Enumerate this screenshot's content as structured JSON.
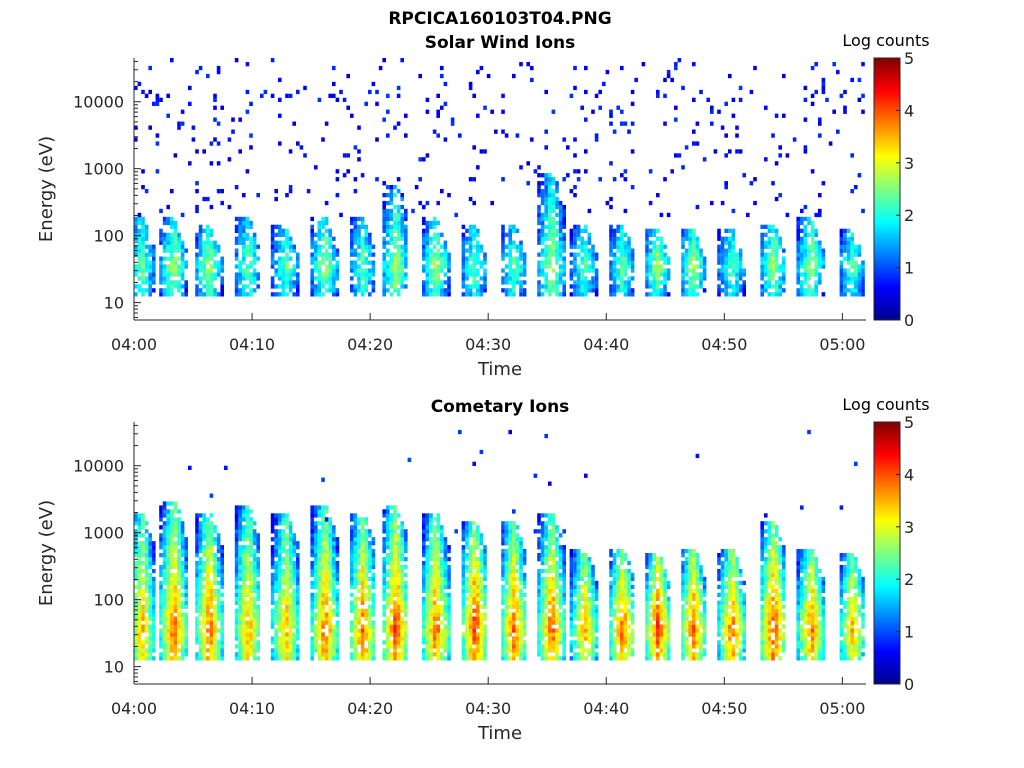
{
  "figure": {
    "title": "RPCICA160103T04.PNG"
  },
  "chart_data": [
    {
      "type": "heatmap",
      "title": "Solar Wind Ions",
      "xlabel": "Time",
      "ylabel": "Energy (eV)",
      "xlim": [
        "04:00",
        "05:02"
      ],
      "x_ticks": [
        "04:00",
        "04:10",
        "04:20",
        "04:30",
        "04:40",
        "04:50",
        "05:00"
      ],
      "ylim": [
        5.5,
        45000
      ],
      "yscale": "log",
      "y_ticks": [
        "10",
        "100",
        "1000",
        "10000"
      ],
      "colorbar": {
        "label": "Log counts",
        "range": [
          0,
          5
        ],
        "ticks": [
          "0",
          "1",
          "2",
          "3",
          "4",
          "5"
        ],
        "colormap": "jet"
      },
      "bursts": [
        {
          "time": "04:00.8",
          "peak": 2.0,
          "top_eV": 200
        },
        {
          "time": "04:03.5",
          "peak": 2.3,
          "top_eV": 180
        },
        {
          "time": "04:06.5",
          "peak": 2.3,
          "top_eV": 150
        },
        {
          "time": "04:09.8",
          "peak": 2.0,
          "top_eV": 180
        },
        {
          "time": "04:13.0",
          "peak": 2.0,
          "top_eV": 150
        },
        {
          "time": "04:16.3",
          "peak": 2.3,
          "top_eV": 200
        },
        {
          "time": "04:19.5",
          "peak": 2.0,
          "top_eV": 180
        },
        {
          "time": "04:22.3",
          "peak": 2.3,
          "top_eV": 600
        },
        {
          "time": "04:25.7",
          "peak": 2.3,
          "top_eV": 180
        },
        {
          "time": "04:29.0",
          "peak": 2.0,
          "top_eV": 150
        },
        {
          "time": "04:32.3",
          "peak": 2.0,
          "top_eV": 150
        },
        {
          "time": "04:35.5",
          "peak": 2.3,
          "top_eV": 900
        },
        {
          "time": "04:38.3",
          "peak": 2.0,
          "top_eV": 150
        },
        {
          "time": "04:41.5",
          "peak": 2.0,
          "top_eV": 150
        },
        {
          "time": "04:44.5",
          "peak": 2.3,
          "top_eV": 120
        },
        {
          "time": "04:47.5",
          "peak": 2.3,
          "top_eV": 120
        },
        {
          "time": "04:50.8",
          "peak": 2.0,
          "top_eV": 120
        },
        {
          "time": "04:54.3",
          "peak": 2.3,
          "top_eV": 150
        },
        {
          "time": "04:57.5",
          "peak": 2.3,
          "top_eV": 180
        },
        {
          "time": "05:01.0",
          "peak": 2.0,
          "top_eV": 120
        }
      ]
    },
    {
      "type": "heatmap",
      "title": "Cometary Ions",
      "xlabel": "Time",
      "ylabel": "Energy (eV)",
      "xlim": [
        "04:00",
        "05:02"
      ],
      "x_ticks": [
        "04:00",
        "04:10",
        "04:20",
        "04:30",
        "04:40",
        "04:50",
        "05:00"
      ],
      "ylim": [
        5.5,
        45000
      ],
      "yscale": "log",
      "y_ticks": [
        "10",
        "100",
        "1000",
        "10000"
      ],
      "colorbar": {
        "label": "Log counts",
        "range": [
          0,
          5
        ],
        "ticks": [
          "0",
          "1",
          "2",
          "3",
          "4",
          "5"
        ],
        "colormap": "jet"
      },
      "bursts": [
        {
          "time": "04:00.8",
          "peak": 3.0,
          "top_eV": 2000
        },
        {
          "time": "04:03.5",
          "peak": 3.3,
          "top_eV": 3000
        },
        {
          "time": "04:06.5",
          "peak": 3.3,
          "top_eV": 2000
        },
        {
          "time": "04:09.8",
          "peak": 3.0,
          "top_eV": 2500
        },
        {
          "time": "04:13.0",
          "peak": 3.0,
          "top_eV": 2000
        },
        {
          "time": "04:16.3",
          "peak": 3.3,
          "top_eV": 2500
        },
        {
          "time": "04:19.5",
          "peak": 3.3,
          "top_eV": 2000
        },
        {
          "time": "04:22.3",
          "peak": 3.5,
          "top_eV": 2500
        },
        {
          "time": "04:25.7",
          "peak": 3.3,
          "top_eV": 2000
        },
        {
          "time": "04:29.0",
          "peak": 3.5,
          "top_eV": 1500
        },
        {
          "time": "04:32.3",
          "peak": 3.3,
          "top_eV": 1500
        },
        {
          "time": "04:35.5",
          "peak": 3.3,
          "top_eV": 2000
        },
        {
          "time": "04:38.3",
          "peak": 3.0,
          "top_eV": 600
        },
        {
          "time": "04:41.5",
          "peak": 3.3,
          "top_eV": 600
        },
        {
          "time": "04:44.5",
          "peak": 3.5,
          "top_eV": 500
        },
        {
          "time": "04:47.5",
          "peak": 3.3,
          "top_eV": 600
        },
        {
          "time": "04:50.8",
          "peak": 3.3,
          "top_eV": 600
        },
        {
          "time": "04:54.3",
          "peak": 3.5,
          "top_eV": 1500
        },
        {
          "time": "04:57.5",
          "peak": 3.3,
          "top_eV": 600
        },
        {
          "time": "05:01.0",
          "peak": 3.0,
          "top_eV": 500
        }
      ]
    }
  ]
}
